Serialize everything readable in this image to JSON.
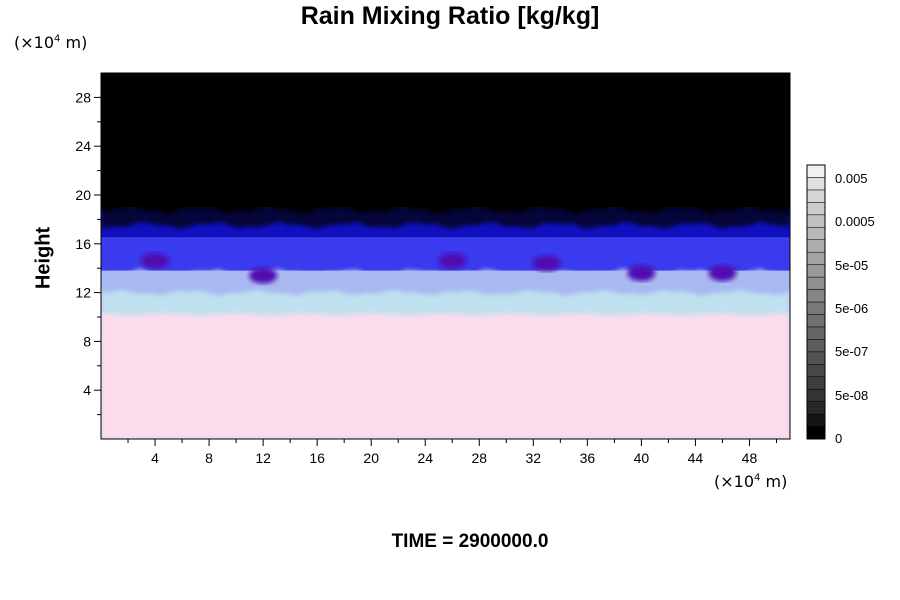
{
  "chart_data": {
    "type": "heatmap",
    "title": "Rain Mixing Ratio [kg/kg]",
    "ylabel": "Height",
    "x_unit_prefix": "(×10",
    "x_unit_exp": "4",
    "x_unit_suffix": " m)",
    "y_unit_prefix": "(×10",
    "y_unit_exp": "4",
    "y_unit_suffix": " m)",
    "xlim": [
      0,
      51
    ],
    "ylim": [
      0,
      30
    ],
    "x_ticks": [
      "4",
      "8",
      "12",
      "16",
      "20",
      "24",
      "28",
      "32",
      "36",
      "40",
      "44",
      "48"
    ],
    "x_tick_values": [
      4,
      8,
      12,
      16,
      20,
      24,
      28,
      32,
      36,
      40,
      44,
      48
    ],
    "y_ticks": [
      "4",
      "8",
      "12",
      "16",
      "20",
      "24",
      "28"
    ],
    "y_tick_values": [
      4,
      8,
      12,
      16,
      20,
      24,
      28
    ],
    "layers": [
      {
        "from": 0,
        "to": 10.2,
        "color": "#fcdcec"
      },
      {
        "from": 10.2,
        "to": 12.2,
        "color": "#c0e0f0"
      },
      {
        "from": 12.2,
        "to": 13.8,
        "color": "#a8b8f0"
      },
      {
        "from": 13.8,
        "to": 16.5,
        "color": "#3a3aee"
      },
      {
        "from": 16.5,
        "to": 19.0,
        "color": "#1010c0"
      },
      {
        "from": 19.0,
        "to": 30,
        "color": "#000000"
      }
    ],
    "colorbar": {
      "labels": [
        "0.005",
        "0.0005",
        "5e-05",
        "5e-06",
        "5e-07",
        "5e-08",
        "0"
      ],
      "colors": [
        "#000000",
        "#141414",
        "#282828",
        "#333333",
        "#3d3d3d",
        "#474747",
        "#525252",
        "#5c5c5c",
        "#666666",
        "#707070",
        "#7a7a7a",
        "#858585",
        "#8f8f8f",
        "#999999",
        "#a3a3a3",
        "#adadad",
        "#b8b8b8",
        "#c2c2c2",
        "#cccccc",
        "#d6d6d6",
        "#e0e0e0",
        "#f0f0f0"
      ]
    },
    "time_label": "TIME = 2900000.0"
  }
}
